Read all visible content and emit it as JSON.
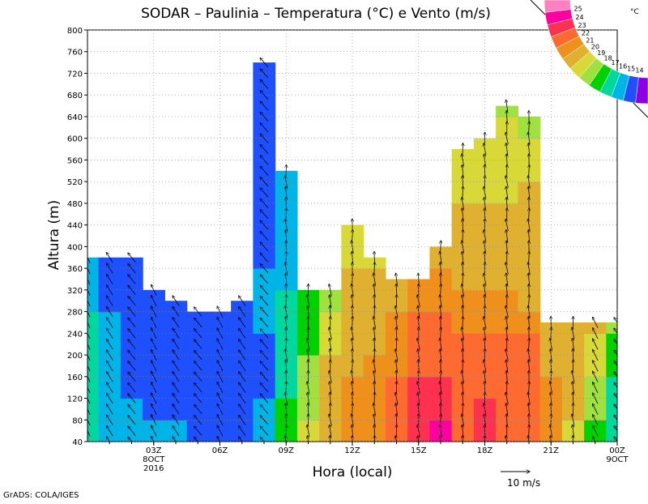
{
  "chart_data": {
    "type": "heatmap",
    "title": "SODAR – Paulinia – Temperatura (°C) e Vento (m/s)",
    "xlabel": "Hora (local)",
    "ylabel": "Altura (m)",
    "y_ticks": [
      40,
      80,
      120,
      160,
      200,
      240,
      280,
      320,
      360,
      400,
      440,
      480,
      520,
      560,
      600,
      640,
      680,
      720,
      760,
      800
    ],
    "ylim": [
      40,
      800
    ],
    "xlim_hours": [
      0,
      24
    ],
    "x_ticks": [
      {
        "hour": 3,
        "lines": [
          "03Z",
          "8OCT",
          "2016"
        ]
      },
      {
        "hour": 6,
        "lines": [
          "06Z"
        ]
      },
      {
        "hour": 9,
        "lines": [
          "09Z"
        ]
      },
      {
        "hour": 12,
        "lines": [
          "12Z"
        ]
      },
      {
        "hour": 15,
        "lines": [
          "15Z"
        ]
      },
      {
        "hour": 18,
        "lines": [
          "18Z"
        ]
      },
      {
        "hour": 21,
        "lines": [
          "21Z"
        ]
      },
      {
        "hour": 24,
        "lines": [
          "00Z",
          "9OCT"
        ]
      }
    ],
    "colorbar": {
      "unit": "°C",
      "levels": [
        25,
        24,
        23,
        22,
        21,
        20,
        19,
        18,
        17,
        16,
        15,
        14
      ],
      "colors": [
        "#ff80c0",
        "#ff00a0",
        "#ff3050",
        "#ff6a30",
        "#f0901c",
        "#e0b030",
        "#d8d838",
        "#a0e040",
        "#00d200",
        "#00d8a0",
        "#00b4e8",
        "#1e50ff",
        "#8c00e6"
      ]
    },
    "wind_reference": {
      "label": "10 m/s",
      "speed": 10
    },
    "columns": [
      {
        "hour": 0,
        "top": 380,
        "temps": [
          16.5,
          16.5,
          16.6,
          16.5,
          16.2,
          16.0,
          15.8,
          15.6,
          15.5,
          15.5
        ]
      },
      {
        "hour": 1,
        "top": 380,
        "temps": [
          15.8,
          15.6,
          15.5,
          15.3,
          15.2,
          15.0,
          14.9,
          14.8,
          14.8,
          14.8
        ]
      },
      {
        "hour": 2,
        "top": 380,
        "temps": [
          15.4,
          15.0,
          14.8,
          14.6,
          14.6,
          14.6,
          14.6,
          14.7,
          14.8,
          14.8
        ]
      },
      {
        "hour": 3,
        "top": 320,
        "temps": [
          15.6,
          14.8,
          14.4,
          14.3,
          14.4,
          14.6,
          14.8,
          14.9
        ]
      },
      {
        "hour": 4,
        "top": 300,
        "temps": [
          15.6,
          14.6,
          14.2,
          14.1,
          14.3,
          14.5,
          14.7
        ]
      },
      {
        "hour": 5,
        "top": 280,
        "temps": [
          14.6,
          14.3,
          14.1,
          14.0,
          14.2,
          14.4,
          14.7
        ]
      },
      {
        "hour": 6,
        "top": 280,
        "temps": [
          14.3,
          14.1,
          14.0,
          14.0,
          14.1,
          14.3,
          14.8
        ]
      },
      {
        "hour": 7,
        "top": 300,
        "temps": [
          14.3,
          14.1,
          14.0,
          14.0,
          14.1,
          14.3,
          14.6
        ]
      },
      {
        "hour": 8,
        "top": 740,
        "temps": [
          15.6,
          15.2,
          14.8,
          14.8,
          14.9,
          15.0,
          15.0,
          15.0,
          14.9,
          14.6,
          14.6,
          14.4,
          14.3,
          14.2,
          14.2,
          14.1,
          14.1,
          14.0,
          14.0
        ]
      },
      {
        "hour": 9,
        "top": 540,
        "temps": [
          17.5,
          17.0,
          16.6,
          16.4,
          16.3,
          16.2,
          16.0,
          15.8,
          15.6,
          15.4,
          15.4,
          15.3,
          15.3,
          15.2
        ]
      },
      {
        "hour": 10,
        "top": 320,
        "temps": [
          19.2,
          18.8,
          18.2,
          18.0,
          17.8,
          17.6,
          17.5,
          17.4
        ]
      },
      {
        "hour": 11,
        "top": 320,
        "temps": [
          20.8,
          20.4,
          20.2,
          20.0,
          19.6,
          19.2,
          18.9,
          18.6
        ]
      },
      {
        "hour": 12,
        "top": 440,
        "temps": [
          21.8,
          21.6,
          21.2,
          20.8,
          20.4,
          20.2,
          20.1,
          20.0,
          19.6,
          19.0,
          18.0
        ]
      },
      {
        "hour": 13,
        "top": 380,
        "temps": [
          21.4,
          21.3,
          21.2,
          21.0,
          20.8,
          20.6,
          20.4,
          20.1,
          19.6,
          19.2
        ]
      },
      {
        "hour": 14,
        "top": 340,
        "temps": [
          22.6,
          22.4,
          22.0,
          21.6,
          21.3,
          21.0,
          20.8,
          20.5,
          20.2
        ]
      },
      {
        "hour": 15,
        "top": 340,
        "temps": [
          23.8,
          23.4,
          23.2,
          22.8,
          22.4,
          22.0,
          21.6,
          21.2,
          20.8
        ]
      },
      {
        "hour": 16,
        "top": 400,
        "temps": [
          24.2,
          23.4,
          23.2,
          22.8,
          22.6,
          22.2,
          21.8,
          21.4,
          20.8,
          20.4
        ]
      },
      {
        "hour": 17,
        "top": 580,
        "temps": [
          22.8,
          22.6,
          22.5,
          22.3,
          22.0,
          21.6,
          21.0,
          20.6,
          20.2,
          20.1,
          20.1,
          19.9,
          19.4,
          19.2,
          19.0
        ]
      },
      {
        "hour": 18,
        "top": 600,
        "temps": [
          23.2,
          23.0,
          22.8,
          22.6,
          22.2,
          21.6,
          21.0,
          20.8,
          20.4,
          20.2,
          20.1,
          19.8,
          19.4,
          19.0,
          18.9
        ]
      },
      {
        "hour": 19,
        "top": 660,
        "temps": [
          22.4,
          22.6,
          22.6,
          22.6,
          22.2,
          21.4,
          21.1,
          20.7,
          20.4,
          20.3,
          20.2,
          19.9,
          19.3,
          19.2,
          19.0,
          18.5,
          17.4
        ]
      },
      {
        "hour": 20,
        "top": 640,
        "temps": [
          22.3,
          22.6,
          22.5,
          22.4,
          22.0,
          21.2,
          20.9,
          20.6,
          20.4,
          20.2,
          20.2,
          20.0,
          19.6,
          19.2,
          18.9,
          17.6
        ]
      },
      {
        "hour": 21,
        "top": 260,
        "temps": [
          21.0,
          21.2,
          21.0,
          20.8,
          20.8,
          20.8
        ]
      },
      {
        "hour": 22,
        "top": 260,
        "temps": [
          19.8,
          20.4,
          20.6,
          20.6,
          20.7,
          20.6
        ]
      },
      {
        "hour": 23,
        "top": 260,
        "temps": [
          17.8,
          18.4,
          18.8,
          19.0,
          19.6,
          20.2
        ]
      },
      {
        "hour": 24,
        "top": 260,
        "temps": [
          16.0,
          16.2,
          16.5,
          17.0,
          17.4,
          18.4
        ]
      }
    ],
    "wind_direction_note": "night hours: winds from SE (arrows pointing NW); day hours: southerly winds (arrows pointing N)"
  },
  "footer": {
    "credit": "GrADS: COLA/IGES"
  }
}
